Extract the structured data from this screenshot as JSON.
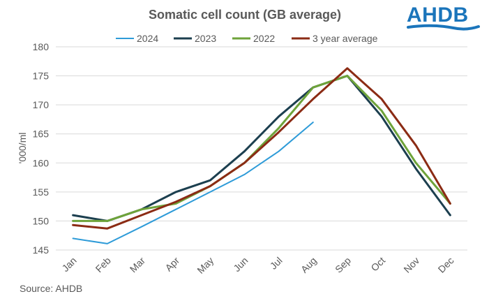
{
  "logo": {
    "text": "AHDB",
    "color": "#1b75bb"
  },
  "source": "Source: AHDB",
  "chart_data": {
    "type": "line",
    "title": "Somatic cell count (GB average)",
    "xlabel": "",
    "ylabel": "'000/ml",
    "ylim": [
      145,
      180
    ],
    "ytick_step": 5,
    "yticks": [
      "145",
      "150",
      "155",
      "160",
      "165",
      "170",
      "175",
      "180"
    ],
    "grid": true,
    "legend_position": "top",
    "categories": [
      "Jan",
      "Feb",
      "Mar",
      "Apr",
      "May",
      "Jun",
      "Jul",
      "Aug",
      "Sep",
      "Oct",
      "Nov",
      "Dec"
    ],
    "series": [
      {
        "name": "2024",
        "color": "#2e9bd8",
        "values": [
          147,
          146.1,
          149,
          152,
          155,
          158,
          162,
          167,
          null,
          null,
          null,
          null
        ]
      },
      {
        "name": "2023",
        "color": "#1c3f4f",
        "values": [
          151,
          150,
          152,
          155,
          157,
          162,
          168,
          173,
          175,
          168,
          159,
          151
        ]
      },
      {
        "name": "2022",
        "color": "#6ea33a",
        "values": [
          150,
          150,
          152,
          153,
          156,
          160,
          166,
          173,
          175,
          169,
          160,
          153
        ]
      },
      {
        "name": "3 year average",
        "color": "#8b2b14",
        "values": [
          149.3,
          148.7,
          151,
          153.3,
          156,
          160,
          165.3,
          171,
          176.3,
          171,
          163,
          153
        ]
      }
    ]
  }
}
